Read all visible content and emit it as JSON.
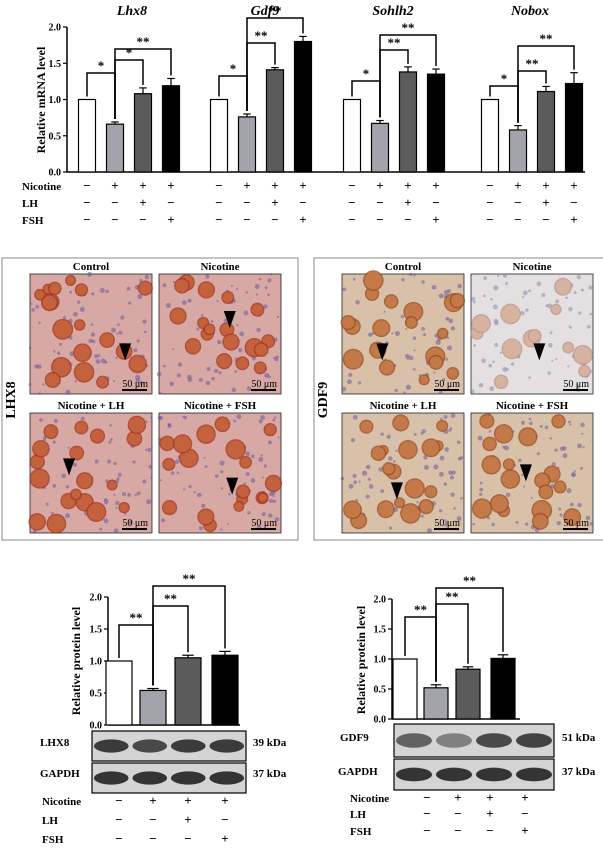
{
  "qpcr": {
    "ylabel": "Relative mRNA level",
    "yticks": [
      "0.0",
      "0.5",
      "1.0",
      "1.5",
      "2.0"
    ],
    "treatments": [
      "Nicotine",
      "LH",
      "FSH"
    ],
    "design": [
      [
        "−",
        "+",
        "+",
        "+"
      ],
      [
        "−",
        "−",
        "+",
        "−"
      ],
      [
        "−",
        "−",
        "−",
        "+"
      ]
    ]
  },
  "chart_data": [
    {
      "type": "bar",
      "title": "Lhx8",
      "categories": [
        "Control",
        "Nicotine",
        "Nicotine + LH",
        "Nicotine + FSH"
      ],
      "values": [
        1.0,
        0.66,
        1.08,
        1.19
      ],
      "errors": [
        0.0,
        0.03,
        0.08,
        0.1
      ],
      "ylim": [
        0,
        2.0
      ],
      "significance": [
        {
          "from": 0,
          "to": 1,
          "label": "*"
        },
        {
          "from": 1,
          "to": 2,
          "label": "*"
        },
        {
          "from": 1,
          "to": 3,
          "label": "**"
        }
      ]
    },
    {
      "type": "bar",
      "title": "Gdf9",
      "categories": [
        "Control",
        "Nicotine",
        "Nicotine + LH",
        "Nicotine + FSH"
      ],
      "values": [
        1.0,
        0.76,
        1.41,
        1.8
      ],
      "errors": [
        0.0,
        0.04,
        0.03,
        0.07
      ],
      "ylim": [
        0,
        2.0
      ],
      "significance": [
        {
          "from": 0,
          "to": 1,
          "label": "*"
        },
        {
          "from": 1,
          "to": 2,
          "label": "**"
        },
        {
          "from": 1,
          "to": 3,
          "label": "**"
        }
      ]
    },
    {
      "type": "bar",
      "title": "Sohlh2",
      "categories": [
        "Control",
        "Nicotine",
        "Nicotine + LH",
        "Nicotine + FSH"
      ],
      "values": [
        1.0,
        0.67,
        1.38,
        1.35
      ],
      "errors": [
        0.0,
        0.04,
        0.07,
        0.07
      ],
      "ylim": [
        0,
        2.0
      ],
      "significance": [
        {
          "from": 0,
          "to": 1,
          "label": "*"
        },
        {
          "from": 1,
          "to": 2,
          "label": "**"
        },
        {
          "from": 1,
          "to": 3,
          "label": "**"
        }
      ]
    },
    {
      "type": "bar",
      "title": "Nobox",
      "categories": [
        "Control",
        "Nicotine",
        "Nicotine + LH",
        "Nicotine + FSH"
      ],
      "values": [
        1.0,
        0.58,
        1.11,
        1.22
      ],
      "errors": [
        0.0,
        0.06,
        0.07,
        0.15
      ],
      "ylim": [
        0,
        2.0
      ],
      "significance": [
        {
          "from": 0,
          "to": 1,
          "label": "*"
        },
        {
          "from": 1,
          "to": 2,
          "label": "**"
        },
        {
          "from": 1,
          "to": 3,
          "label": "**"
        }
      ]
    },
    {
      "type": "bar",
      "title": "",
      "ylabel": "Relative protein level",
      "yticks": [
        "0.0",
        "0.5",
        "1.0",
        "1.5",
        "2.0"
      ],
      "categories": [
        "Control",
        "Nicotine",
        "Nicotine + LH",
        "Nicotine + FSH"
      ],
      "values": [
        1.0,
        0.54,
        1.05,
        1.09
      ],
      "errors": [
        0.0,
        0.03,
        0.04,
        0.06
      ],
      "ylim": [
        0,
        2.0
      ],
      "significance": [
        {
          "from": 0,
          "to": 1,
          "label": "**"
        },
        {
          "from": 1,
          "to": 2,
          "label": "**"
        },
        {
          "from": 1,
          "to": 3,
          "label": "**"
        }
      ]
    },
    {
      "type": "bar",
      "title": "",
      "ylabel": "Relative protein level",
      "yticks": [
        "0.0",
        "0.5",
        "1.0",
        "1.5",
        "2.0"
      ],
      "categories": [
        "Control",
        "Nicotine",
        "Nicotine + LH",
        "Nicotine + FSH"
      ],
      "values": [
        1.0,
        0.52,
        0.83,
        1.01
      ],
      "errors": [
        0.0,
        0.05,
        0.04,
        0.06
      ],
      "ylim": [
        0,
        2.0
      ],
      "significance": [
        {
          "from": 0,
          "to": 1,
          "label": "**"
        },
        {
          "from": 1,
          "to": 2,
          "label": "**"
        },
        {
          "from": 1,
          "to": 3,
          "label": "**"
        }
      ]
    }
  ],
  "colors": {
    "bar_fills": [
      "#ffffff",
      "#a3a3ab",
      "#5b5b5b",
      "#000000"
    ]
  },
  "ihc": [
    {
      "marker": "LHX8",
      "panels": [
        {
          "label": "Control",
          "scale": "50 μm"
        },
        {
          "label": "Nicotine",
          "scale": "50 μm"
        },
        {
          "label": "Nicotine + LH",
          "scale": "50 μm"
        },
        {
          "label": "Nicotine + FSH",
          "scale": "50 μm"
        }
      ]
    },
    {
      "marker": "GDF9",
      "panels": [
        {
          "label": "Control",
          "scale": "50 μm"
        },
        {
          "label": "Nicotine",
          "scale": "50 μm"
        },
        {
          "label": "Nicotine + LH",
          "scale": "50 μm"
        },
        {
          "label": "Nicotine + FSH",
          "scale": "50 μm"
        }
      ]
    }
  ],
  "western": [
    {
      "target": "LHX8",
      "target_kda": "39 kDa",
      "loading": "GAPDH",
      "loading_kda": "37 kDa"
    },
    {
      "target": "GDF9",
      "target_kda": "51 kDa",
      "loading": "GAPDH",
      "loading_kda": "37 kDa"
    }
  ]
}
